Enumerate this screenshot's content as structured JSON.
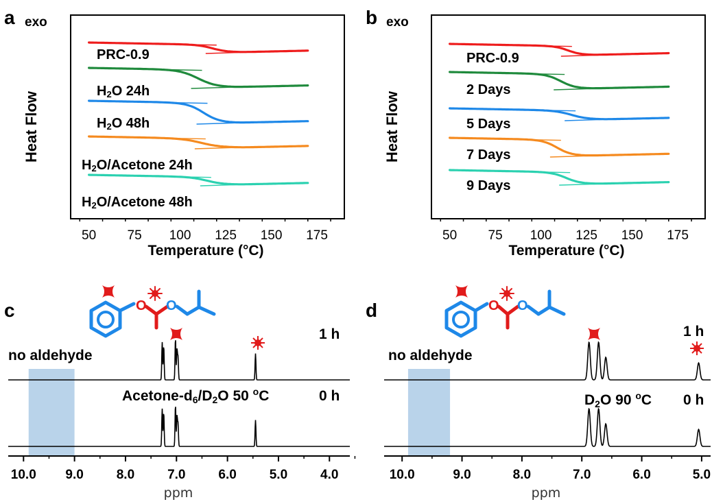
{
  "panels": {
    "a": {
      "letter": "a",
      "exo": "exo",
      "ylabel": "Heat Flow",
      "xlabel": "Temperature (°C)"
    },
    "b": {
      "letter": "b",
      "exo": "exo",
      "ylabel": "Heat Flow",
      "xlabel": "Temperature (°C)"
    },
    "c": {
      "letter": "c",
      "no_aldehyde": "no aldehyde",
      "top_label": "1 h",
      "bottom_solvent": "Acetone-d6/D2O 50 oC",
      "bottom_time": "0 h",
      "xlabel": "ppm"
    },
    "d": {
      "letter": "d",
      "no_aldehyde": "no aldehyde",
      "top_label": "1 h",
      "bottom_solvent": "D2O 90 oC",
      "bottom_time": "0 h",
      "xlabel": "ppm"
    }
  },
  "colors": {
    "red": "#ee1c1c",
    "green": "#1f8a3c",
    "blue": "#1e88e8",
    "orange": "#f58a1f",
    "teal": "#2bd1b0",
    "shade": "#b9d3ea",
    "molecule_blue": "#1e88e8",
    "molecule_red": "#e11b1b"
  },
  "chart_data": [
    {
      "panel": "a",
      "type": "line",
      "xlabel": "Temperature (°C)",
      "ylabel": "Heat Flow",
      "xlim": [
        40,
        190
      ],
      "xticks": [
        50,
        75,
        100,
        125,
        150,
        175
      ],
      "series": [
        {
          "name": "PRC-0.9",
          "color": "#ee1c1c",
          "start": 50,
          "end": 170,
          "tg": 118,
          "width": 16
        },
        {
          "name": "H2O 24h",
          "color": "#1f8a3c",
          "start": 50,
          "end": 170,
          "tg": 110,
          "width": 20
        },
        {
          "name": "H2O 48h",
          "color": "#1e88e8",
          "start": 50,
          "end": 170,
          "tg": 113,
          "width": 18
        },
        {
          "name": "H2O/Acetone 24h",
          "color": "#f58a1f",
          "start": 50,
          "end": 170,
          "tg": 112,
          "width": 22
        },
        {
          "name": "H2O/Acetone 48h",
          "color": "#2bd1b0",
          "start": 50,
          "end": 170,
          "tg": 115,
          "width": 18
        }
      ]
    },
    {
      "panel": "b",
      "type": "line",
      "xlabel": "Temperature (°C)",
      "ylabel": "Heat Flow",
      "xlim": [
        40,
        190
      ],
      "xticks": [
        50,
        75,
        100,
        125,
        150,
        175
      ],
      "series": [
        {
          "name": "PRC-0.9",
          "color": "#ee1c1c",
          "start": 50,
          "end": 170,
          "tg": 115,
          "width": 14
        },
        {
          "name": "2 Days",
          "color": "#1f8a3c",
          "start": 50,
          "end": 170,
          "tg": 111,
          "width": 16
        },
        {
          "name": "5 Days",
          "color": "#1e88e8",
          "start": 50,
          "end": 170,
          "tg": 117,
          "width": 18
        },
        {
          "name": "7 Days",
          "color": "#f58a1f",
          "start": 50,
          "end": 170,
          "tg": 109,
          "width": 16
        },
        {
          "name": "9 Days",
          "color": "#2bd1b0",
          "start": 50,
          "end": 170,
          "tg": 114,
          "width": 16
        }
      ]
    },
    {
      "panel": "c",
      "type": "line",
      "xlabel": "ppm",
      "xlim": [
        10.3,
        3.6
      ],
      "reversed": true,
      "xticks": [
        "10.0",
        "9.0",
        "8.0",
        "7.0",
        "6.0",
        "5.0",
        "4.0"
      ],
      "shaded_region": [
        9.0,
        9.9
      ],
      "peaks": [
        7.28,
        7.25,
        7.02,
        6.99,
        6.97,
        5.45
      ],
      "peak_heights_1h": [
        1.0,
        0.9,
        1.1,
        0.8,
        0.6,
        0.7
      ],
      "peak_heights_0h": [
        1.0,
        0.9,
        1.1,
        0.8,
        0.6,
        0.7
      ]
    },
    {
      "panel": "d",
      "type": "line",
      "xlabel": "ppm",
      "xlim": [
        10.3,
        4.85
      ],
      "reversed": true,
      "xticks": [
        "10.0",
        "9.0",
        "8.0",
        "7.0",
        "6.0",
        "5.0"
      ],
      "shaded_region": [
        9.2,
        9.9
      ],
      "peaks": [
        6.88,
        6.72,
        6.6,
        5.05
      ],
      "peak_heights_1h": [
        1.0,
        1.0,
        0.6,
        0.45
      ],
      "peak_heights_0h": [
        1.0,
        1.0,
        0.6,
        0.45
      ]
    }
  ]
}
